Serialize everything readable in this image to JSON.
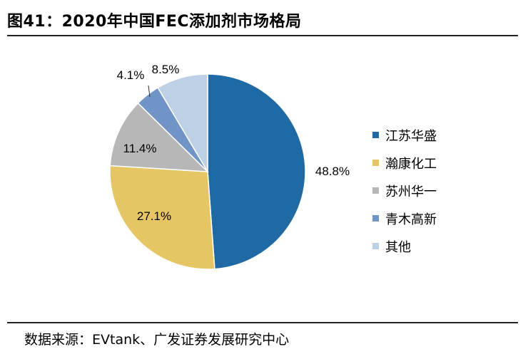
{
  "header": {
    "title": "图41：2020年中国FEC添加剂市场格局"
  },
  "footer": {
    "source": "数据来源：EVtank、广发证券发展研究中心"
  },
  "chart_data": {
    "type": "pie",
    "title": "2020年中国FEC添加剂市场格局",
    "start": "12 o'clock, clockwise",
    "legend_position": "right",
    "slices": [
      {
        "name": "江苏华盛",
        "value": 48.8,
        "label": "48.8%",
        "color": "#1F6AA5"
      },
      {
        "name": "瀚康化工",
        "value": 27.1,
        "label": "27.1%",
        "color": "#E6C664"
      },
      {
        "name": "苏州华一",
        "value": 11.4,
        "label": "11.4%",
        "color": "#B7B7B7"
      },
      {
        "name": "青木高新",
        "value": 4.1,
        "label": "4.1%",
        "color": "#7094C6"
      },
      {
        "name": "其他",
        "value": 8.5,
        "label": "8.5%",
        "color": "#BDD0E6"
      }
    ]
  }
}
